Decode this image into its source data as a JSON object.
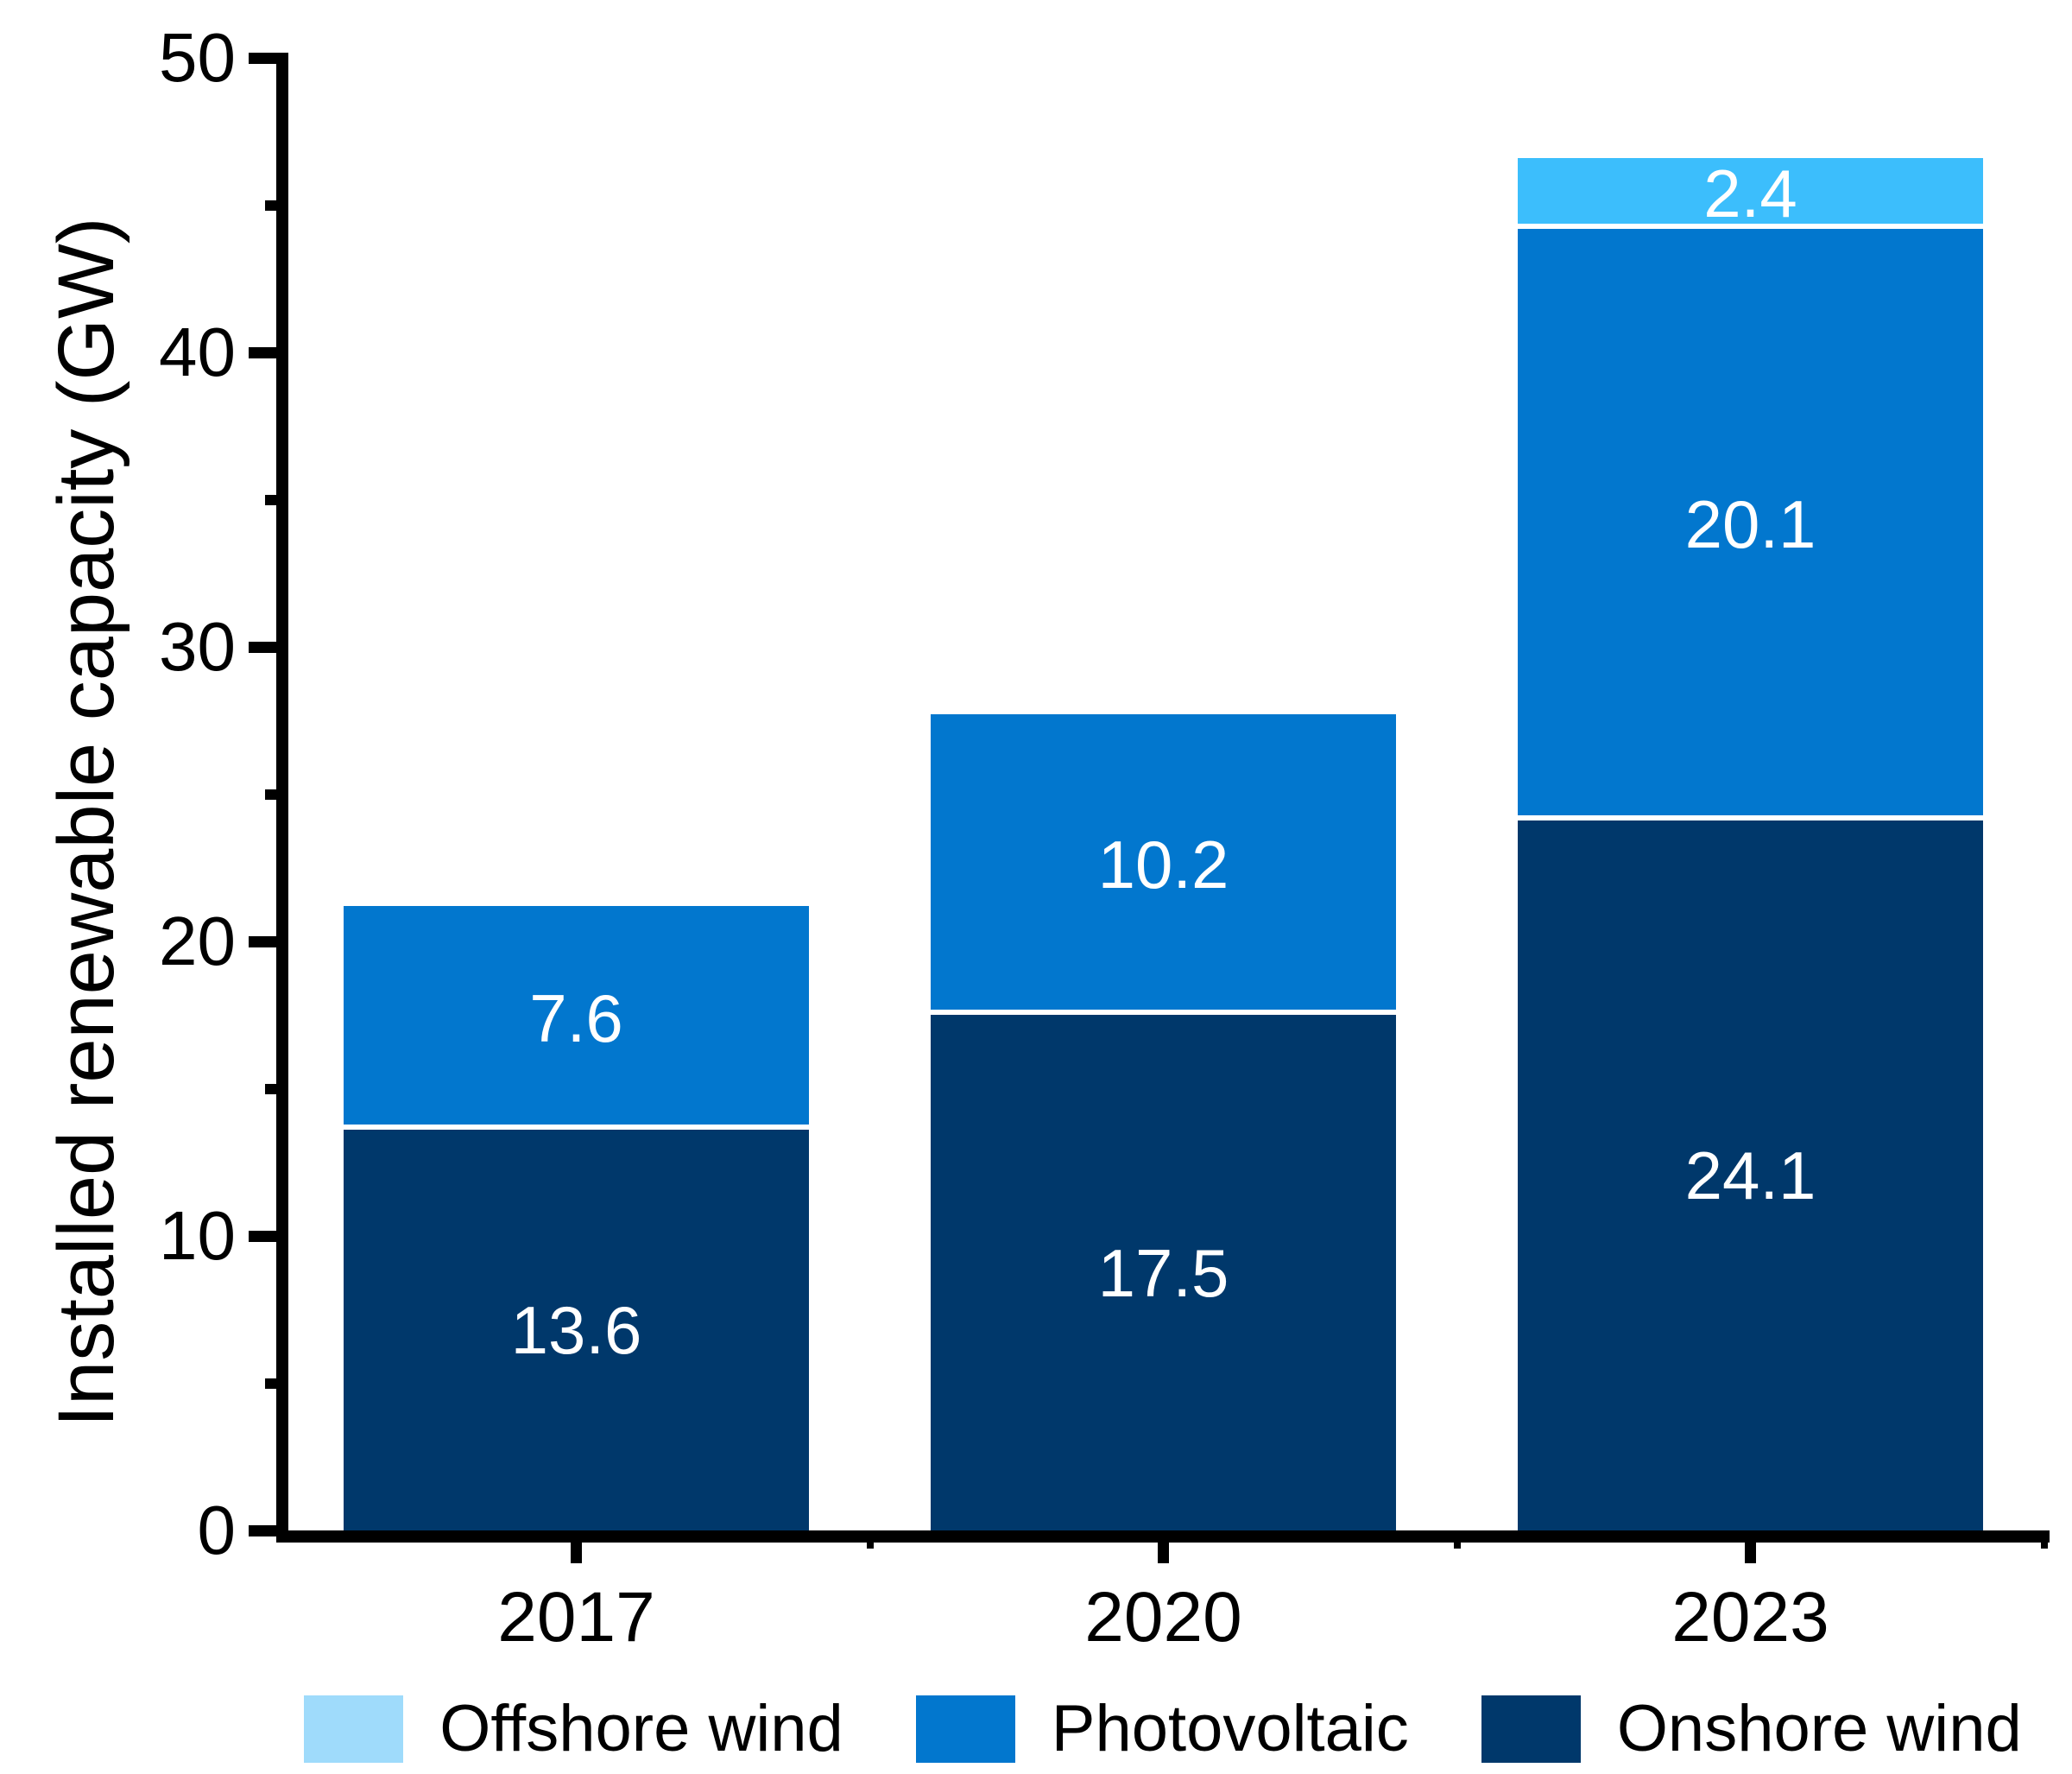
{
  "chart_data": {
    "type": "bar",
    "stacked": true,
    "title": "",
    "xlabel": "",
    "ylabel": "Installed renewable capacity (GW)",
    "categories": [
      "2017",
      "2020",
      "2023"
    ],
    "series": [
      {
        "name": "Onshore wind",
        "color": "#00386B",
        "values": [
          13.6,
          17.5,
          24.1
        ]
      },
      {
        "name": "Photovoltaic",
        "color": "#0277CE",
        "values": [
          7.6,
          10.2,
          20.1
        ]
      },
      {
        "name": "Offshore wind",
        "color": "#3CBEFC",
        "values": [
          0,
          0,
          2.4
        ]
      }
    ],
    "bar_value_labels": [
      [
        "13.6",
        "17.5",
        "24.1"
      ],
      [
        "7.6",
        "10.2",
        "20.1"
      ],
      [
        "",
        "",
        "2.4"
      ]
    ],
    "ylim": [
      0,
      50
    ],
    "yticks_major": [
      0,
      10,
      20,
      30,
      40,
      50
    ],
    "yticks_minor": [
      5,
      15,
      25,
      35,
      45
    ],
    "grid": false,
    "legend_position": "bottom",
    "legend": [
      {
        "label": "Offshore wind",
        "swatch_color": "#9FDBFB"
      },
      {
        "label": "Photovoltaic",
        "swatch_color": "#0277CE"
      },
      {
        "label": "Onshore wind",
        "swatch_color": "#00386B"
      }
    ],
    "colors": {
      "axis": "#000000",
      "text": "#000000",
      "bar_value_text": "#FFFFFF",
      "segment_separator": "#FFFFFF",
      "background": "#FFFFFF"
    }
  }
}
